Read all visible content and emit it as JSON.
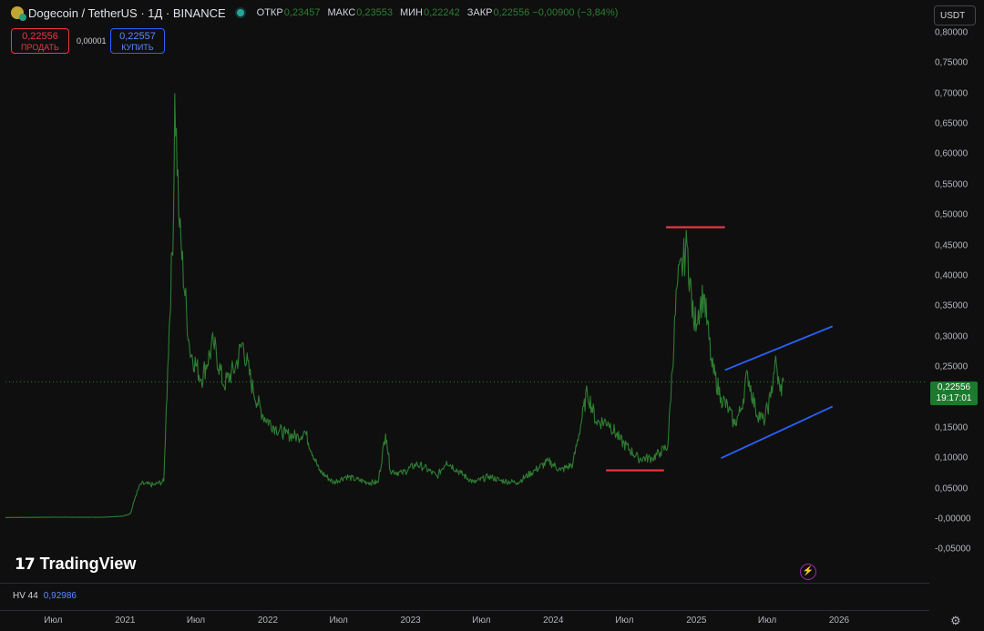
{
  "header": {
    "title": "Dogecoin / TetherUS · 1Д · BINANCE",
    "ohlc": [
      {
        "key": "ОТКР",
        "value": "0,23457"
      },
      {
        "key": "МАКС",
        "value": "0,23553"
      },
      {
        "key": "МИН",
        "value": "0,22242"
      },
      {
        "key": "ЗАКР",
        "value": "0,22556 −0,00900 (−3,84%)"
      }
    ]
  },
  "trade": {
    "sell_price": "0,22556",
    "sell_label": "ПРОДАТЬ",
    "spread": "0,00001",
    "buy_price": "0,22557",
    "buy_label": "КУПИТЬ"
  },
  "currency": "USDT",
  "last_price": {
    "value": "0,22556",
    "countdown": "19:17:01"
  },
  "indicator": {
    "name": "HV 44",
    "value": "0,92986"
  },
  "brand": "TradingView",
  "icons": {
    "bolt": "bolt-icon",
    "settings": "gear-icon",
    "coin": "dogecoin-icon"
  },
  "colors": {
    "series": "#2e7d32",
    "support": "#f23645",
    "channel": "#2962ff",
    "background": "#0f0f0f"
  },
  "chart_data": {
    "type": "line",
    "title": "",
    "ylim": [
      -0.06,
      0.8
    ],
    "y_ticks": [
      "0,80000",
      "0,75000",
      "0,70000",
      "0,65000",
      "0,60000",
      "0,55000",
      "0,50000",
      "0,45000",
      "0,40000",
      "0,35000",
      "0,30000",
      "0,25000",
      "0,20000",
      "0,15000",
      "0,10000",
      "0,05000",
      "-0,00000",
      "-0,05000"
    ],
    "y_tick_values": [
      0.8,
      0.75,
      0.7,
      0.65,
      0.6,
      0.55,
      0.5,
      0.45,
      0.4,
      0.35,
      0.3,
      0.25,
      0.2,
      0.15,
      0.1,
      0.05,
      0.0,
      -0.05
    ],
    "x_range": [
      "2020-03-01",
      "2026-08-15"
    ],
    "x_ticks": [
      {
        "label": "Июл",
        "date": "2020-07-01"
      },
      {
        "label": "2021",
        "date": "2021-01-01"
      },
      {
        "label": "Июл",
        "date": "2021-07-01"
      },
      {
        "label": "2022",
        "date": "2022-01-01"
      },
      {
        "label": "Июл",
        "date": "2022-07-01"
      },
      {
        "label": "2023",
        "date": "2023-01-01"
      },
      {
        "label": "Июл",
        "date": "2023-07-01"
      },
      {
        "label": "2024",
        "date": "2024-01-01"
      },
      {
        "label": "Июл",
        "date": "2024-07-01"
      },
      {
        "label": "2025",
        "date": "2025-01-01"
      },
      {
        "label": "Июл",
        "date": "2025-07-01"
      },
      {
        "label": "2026",
        "date": "2026-01-01"
      }
    ],
    "series": [
      {
        "x": [
          "2020-03-01",
          "2020-05-01",
          "2020-07-01",
          "2020-09-01",
          "2020-11-01",
          "2020-12-25",
          "2021-01-15",
          "2021-01-28",
          "2021-02-10",
          "2021-03-15",
          "2021-04-10",
          "2021-04-20",
          "2021-05-05",
          "2021-05-08",
          "2021-05-20",
          "2021-06-15",
          "2021-07-15",
          "2021-08-15",
          "2021-09-10",
          "2021-10-10",
          "2021-10-28",
          "2021-11-25",
          "2021-12-20",
          "2022-01-20",
          "2022-02-15",
          "2022-03-20",
          "2022-04-05",
          "2022-05-12",
          "2022-06-18",
          "2022-07-20",
          "2022-08-15",
          "2022-09-15",
          "2022-10-10",
          "2022-10-29",
          "2022-11-01",
          "2022-11-10",
          "2022-12-10",
          "2023-01-15",
          "2023-02-05",
          "2023-03-10",
          "2023-04-03",
          "2023-05-10",
          "2023-06-12",
          "2023-07-20",
          "2023-08-20",
          "2023-10-01",
          "2023-11-15",
          "2023-12-20",
          "2024-01-20",
          "2024-02-20",
          "2024-03-28",
          "2024-04-20",
          "2024-05-20",
          "2024-06-20",
          "2024-08-05",
          "2024-09-10",
          "2024-10-01",
          "2024-10-20",
          "2024-11-12",
          "2024-12-08",
          "2024-12-25",
          "2025-01-20",
          "2025-02-10",
          "2025-03-05",
          "2025-03-25",
          "2025-04-08",
          "2025-04-25",
          "2025-05-12",
          "2025-06-01",
          "2025-06-22",
          "2025-07-10",
          "2025-07-21",
          "2025-08-03",
          "2025-08-12"
        ],
        "y": [
          0.0025,
          0.0026,
          0.003,
          0.0028,
          0.0029,
          0.0045,
          0.009,
          0.038,
          0.058,
          0.056,
          0.062,
          0.25,
          0.5,
          0.7,
          0.48,
          0.28,
          0.23,
          0.29,
          0.22,
          0.25,
          0.29,
          0.21,
          0.17,
          0.15,
          0.14,
          0.135,
          0.145,
          0.08,
          0.06,
          0.07,
          0.065,
          0.06,
          0.06,
          0.14,
          0.13,
          0.08,
          0.075,
          0.09,
          0.085,
          0.07,
          0.095,
          0.075,
          0.06,
          0.07,
          0.063,
          0.06,
          0.08,
          0.095,
          0.08,
          0.09,
          0.21,
          0.16,
          0.16,
          0.13,
          0.1,
          0.1,
          0.11,
          0.12,
          0.38,
          0.45,
          0.32,
          0.37,
          0.25,
          0.2,
          0.18,
          0.155,
          0.18,
          0.24,
          0.18,
          0.16,
          0.2,
          0.26,
          0.21,
          0.2256
        ]
      }
    ],
    "annotations": [
      {
        "type": "horizontal_segment",
        "color": "#f23645",
        "from": "2024-10-15",
        "to": "2025-03-15",
        "y": 0.48
      },
      {
        "type": "horizontal_segment",
        "color": "#f23645",
        "from": "2024-05-15",
        "to": "2024-10-10",
        "y": 0.08
      },
      {
        "type": "trend_line",
        "color": "#2962ff",
        "from": [
          "2025-03-15",
          0.245
        ],
        "to": [
          "2025-12-15",
          0.317
        ]
      },
      {
        "type": "trend_line",
        "color": "#2962ff",
        "from": [
          "2025-03-05",
          0.1
        ],
        "to": [
          "2025-12-15",
          0.185
        ]
      }
    ],
    "last_value": 0.22556,
    "grid": false,
    "legend": "none"
  }
}
